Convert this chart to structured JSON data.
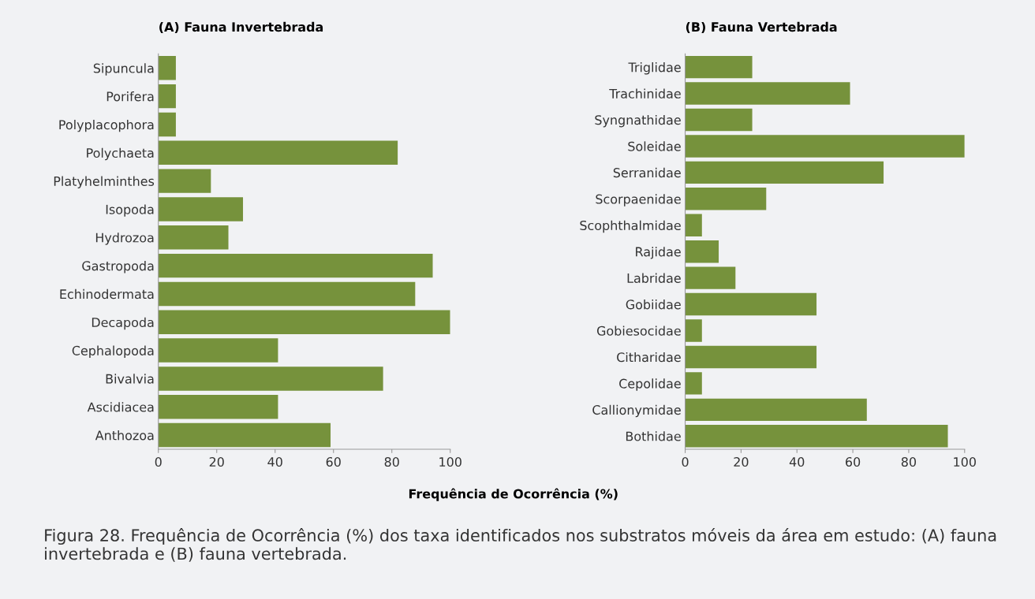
{
  "chart_data": [
    {
      "type": "bar",
      "orientation": "horizontal",
      "title": "(A) Fauna Invertebrada",
      "xlabel": "Frequência de Ocorrência (%)",
      "categories": [
        "Sipuncula",
        "Porifera",
        "Polyplacophora",
        "Polychaeta",
        "Platyhelminthes",
        "Isopoda",
        "Hydrozoa",
        "Gastropoda",
        "Echinodermata",
        "Decapoda",
        "Cephalopoda",
        "Bivalvia",
        "Ascidiacea",
        "Anthozoa"
      ],
      "values": [
        6,
        6,
        6,
        82,
        18,
        29,
        24,
        94,
        88,
        100,
        41,
        77,
        41,
        59
      ],
      "color": "#76923c",
      "xlim": [
        0,
        100
      ],
      "xticks": [
        0,
        20,
        40,
        60,
        80,
        100
      ],
      "grid": false,
      "legend": false,
      "annotations": [
        "Figura 28. Frequência de Ocorrência (%) dos taxa identificados nos substratos móveis da área em estudo: (A) fauna invertebrada e (B) fauna vertebrada."
      ]
    },
    {
      "type": "bar",
      "orientation": "horizontal",
      "title": "(B) Fauna Vertebrada",
      "categories": [
        "Triglidae",
        "Trachinidae",
        "Syngnathidae",
        "Soleidae",
        "Serranidae",
        "Scorpaenidae",
        "Scophthalmidae",
        "Rajidae",
        "Labridae",
        "Gobiidae",
        "Gobiesocidae",
        "Citharidae",
        "Cepolidae",
        "Callionymidae",
        "Bothidae"
      ],
      "values": [
        24,
        59,
        24,
        100,
        71,
        29,
        6,
        12,
        18,
        47,
        6,
        47,
        6,
        65,
        94
      ],
      "color": "#76923c",
      "xlim": [
        0,
        100
      ],
      "xticks": [
        0,
        20,
        40,
        60,
        80,
        100
      ],
      "grid": false,
      "legend": false
    }
  ]
}
